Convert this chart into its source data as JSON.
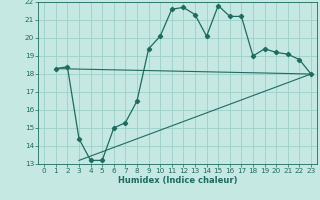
{
  "xlabel": "Humidex (Indice chaleur)",
  "bg_color": "#c5e8e3",
  "grid_color": "#9ecfca",
  "line_color": "#1e6b60",
  "line1_x": [
    1,
    2,
    3,
    4,
    5,
    6,
    7,
    8,
    9,
    10,
    11,
    12,
    13,
    14,
    15,
    16,
    17,
    18,
    19,
    20,
    21,
    22,
    23
  ],
  "line1_y": [
    18.3,
    18.4,
    14.4,
    13.2,
    13.2,
    15.0,
    15.3,
    16.5,
    19.4,
    20.1,
    21.6,
    21.7,
    21.3,
    20.1,
    21.8,
    21.2,
    21.2,
    19.0,
    19.4,
    19.2,
    19.1,
    18.8,
    18.0
  ],
  "line2_x": [
    1,
    23
  ],
  "line2_y": [
    18.3,
    18.0
  ],
  "line3_x": [
    3,
    23
  ],
  "line3_y": [
    13.2,
    18.0
  ],
  "xlim": [
    -0.5,
    23.5
  ],
  "ylim": [
    13,
    22
  ],
  "xticks": [
    0,
    1,
    2,
    3,
    4,
    5,
    6,
    7,
    8,
    9,
    10,
    11,
    12,
    13,
    14,
    15,
    16,
    17,
    18,
    19,
    20,
    21,
    22,
    23
  ],
  "yticks": [
    13,
    14,
    15,
    16,
    17,
    18,
    19,
    20,
    21,
    22
  ],
  "xlabel_fontsize": 6.0,
  "tick_fontsize": 5.2
}
